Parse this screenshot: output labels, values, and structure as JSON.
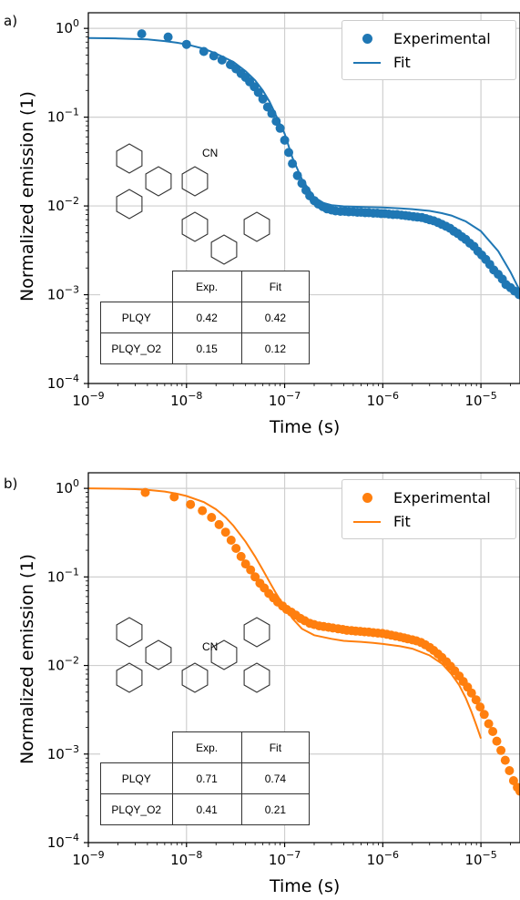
{
  "chart_data": [
    {
      "panel_label": "a)",
      "type": "scatter",
      "x_scale": "log",
      "y_scale": "log",
      "xlabel": "Time (s)",
      "ylabel": "Normalized emission (1)",
      "xlim": [
        1e-09,
        2.5e-05
      ],
      "ylim": [
        0.0001,
        1.5
      ],
      "x_ticks": [
        1e-09,
        1e-08,
        1e-07,
        1e-06,
        1e-05
      ],
      "x_tick_labels": [
        [
          "10",
          "−9"
        ],
        [
          "10",
          "−8"
        ],
        [
          "10",
          "−7"
        ],
        [
          "10",
          "−6"
        ],
        [
          "10",
          "−5"
        ]
      ],
      "y_ticks": [
        0.0001,
        0.001,
        0.01,
        0.1,
        1
      ],
      "y_tick_labels": [
        [
          "10",
          "−4"
        ],
        [
          "10",
          "−3"
        ],
        [
          "10",
          "−2"
        ],
        [
          "10",
          "−1"
        ],
        [
          "10",
          "0"
        ]
      ],
      "grid": true,
      "legend_position": "top-right",
      "series": [
        {
          "name": "Experimental",
          "style": "markers",
          "color": "#1f77b4",
          "x": [
            3.5e-09,
            6.5e-09,
            1e-08,
            1.5e-08,
            1.9e-08,
            2.3e-08,
            2.8e-08,
            3.2e-08,
            3.6e-08,
            4e-08,
            4.4e-08,
            4.9e-08,
            5.4e-08,
            6e-08,
            6.7e-08,
            7.4e-08,
            8.2e-08,
            9e-08,
            1e-07,
            1.1e-07,
            1.2e-07,
            1.35e-07,
            1.5e-07,
            1.65e-07,
            1.8e-07,
            2e-07,
            2.2e-07,
            2.45e-07,
            2.7e-07,
            3e-07,
            3.3e-07,
            3.7e-07,
            4.1e-07,
            4.5e-07,
            5e-07,
            5.5e-07,
            6e-07,
            6.6e-07,
            7.2e-07,
            8e-07,
            8.8e-07,
            9.6e-07,
            1.05e-06,
            1.15e-06,
            1.27e-06,
            1.4e-06,
            1.55e-06,
            1.7e-06,
            1.85e-06,
            2.05e-06,
            2.25e-06,
            2.5e-06,
            2.75e-06,
            3e-06,
            3.3e-06,
            3.65e-06,
            4e-06,
            4.4e-06,
            4.85e-06,
            5.3e-06,
            5.8e-06,
            6.4e-06,
            7e-06,
            7.7e-06,
            8.5e-06,
            9.3e-06,
            1.02e-05,
            1.12e-05,
            1.23e-05,
            1.35e-05,
            1.5e-05,
            1.65e-05,
            1.8e-05,
            2e-05,
            2.2e-05,
            2.45e-05
          ],
          "y": [
            0.87,
            0.8,
            0.66,
            0.55,
            0.49,
            0.44,
            0.39,
            0.35,
            0.31,
            0.28,
            0.25,
            0.22,
            0.19,
            0.16,
            0.13,
            0.11,
            0.09,
            0.075,
            0.055,
            0.04,
            0.03,
            0.022,
            0.018,
            0.015,
            0.013,
            0.0115,
            0.0105,
            0.0098,
            0.0093,
            0.009,
            0.0088,
            0.0087,
            0.0087,
            0.0086,
            0.0086,
            0.0085,
            0.0085,
            0.0084,
            0.0084,
            0.0083,
            0.0083,
            0.0082,
            0.0082,
            0.0081,
            0.008,
            0.008,
            0.0079,
            0.0078,
            0.0077,
            0.0076,
            0.0075,
            0.0074,
            0.0072,
            0.007,
            0.0068,
            0.0065,
            0.0062,
            0.0059,
            0.0056,
            0.0052,
            0.0049,
            0.0045,
            0.0042,
            0.0038,
            0.0035,
            0.0031,
            0.0028,
            0.0025,
            0.0022,
            0.0019,
            0.0017,
            0.0015,
            0.0013,
            0.0012,
            0.0011,
            0.001
          ]
        },
        {
          "name": "Fit",
          "style": "line",
          "color": "#1f77b4",
          "x": [
            1e-09,
            2e-09,
            4e-09,
            6e-09,
            8e-09,
            1e-08,
            1.5e-08,
            2e-08,
            3e-08,
            4e-08,
            5e-08,
            6e-08,
            7e-08,
            8e-08,
            1e-07,
            1.2e-07,
            1.5e-07,
            2e-07,
            2.5e-07,
            3e-07,
            4e-07,
            5e-07,
            7e-07,
            1e-06,
            1.5e-06,
            2e-06,
            3e-06,
            4e-06,
            5e-06,
            7e-06,
            1e-05,
            1.5e-05,
            2e-05,
            2.5e-05
          ],
          "y": [
            0.78,
            0.77,
            0.75,
            0.72,
            0.69,
            0.66,
            0.59,
            0.52,
            0.42,
            0.33,
            0.26,
            0.2,
            0.15,
            0.11,
            0.065,
            0.035,
            0.02,
            0.0125,
            0.0108,
            0.0102,
            0.0099,
            0.0098,
            0.0097,
            0.0096,
            0.0094,
            0.0092,
            0.0088,
            0.0083,
            0.0078,
            0.0067,
            0.0052,
            0.0031,
            0.0018,
            0.0011
          ]
        }
      ],
      "table": {
        "col_headers": [
          "Exp.",
          "Fit"
        ],
        "rows": [
          {
            "label": "PLQY",
            "exp": "0.42",
            "fit": "0.42"
          },
          {
            "label": "PLQY_O2",
            "exp": "0.15",
            "fit": "0.12"
          }
        ]
      },
      "structure_label": "CN"
    },
    {
      "panel_label": "b)",
      "type": "scatter",
      "x_scale": "log",
      "y_scale": "log",
      "xlabel": "Time (s)",
      "ylabel": "Normalized emission (1)",
      "xlim": [
        1e-09,
        2.5e-05
      ],
      "ylim": [
        0.0001,
        1.5
      ],
      "x_ticks": [
        1e-09,
        1e-08,
        1e-07,
        1e-06,
        1e-05
      ],
      "x_tick_labels": [
        [
          "10",
          "−9"
        ],
        [
          "10",
          "−8"
        ],
        [
          "10",
          "−7"
        ],
        [
          "10",
          "−6"
        ],
        [
          "10",
          "−5"
        ]
      ],
      "y_ticks": [
        0.0001,
        0.001,
        0.01,
        0.1,
        1
      ],
      "y_tick_labels": [
        [
          "10",
          "−4"
        ],
        [
          "10",
          "−3"
        ],
        [
          "10",
          "−2"
        ],
        [
          "10",
          "−1"
        ],
        [
          "10",
          "0"
        ]
      ],
      "grid": true,
      "legend_position": "top-right",
      "series": [
        {
          "name": "Experimental",
          "style": "markers",
          "color": "#ff7f0e",
          "x": [
            3.8e-09,
            7.5e-09,
            1.1e-08,
            1.45e-08,
            1.8e-08,
            2.15e-08,
            2.5e-08,
            2.85e-08,
            3.2e-08,
            3.6e-08,
            4e-08,
            4.5e-08,
            5e-08,
            5.6e-08,
            6.2e-08,
            6.9e-08,
            7.7e-08,
            8.5e-08,
            9.5e-08,
            1.05e-07,
            1.17e-07,
            1.3e-07,
            1.45e-07,
            1.6e-07,
            1.8e-07,
            2e-07,
            2.25e-07,
            2.5e-07,
            2.8e-07,
            3.1e-07,
            3.5e-07,
            3.9e-07,
            4.3e-07,
            4.8e-07,
            5.3e-07,
            5.9e-07,
            6.5e-07,
            7.2e-07,
            8e-07,
            8.9e-07,
            9.9e-07,
            1.1e-06,
            1.22e-06,
            1.35e-06,
            1.5e-06,
            1.65e-06,
            1.8e-06,
            2e-06,
            2.2e-06,
            2.45e-06,
            2.7e-06,
            3e-06,
            3.3e-06,
            3.65e-06,
            4e-06,
            4.45e-06,
            4.9e-06,
            5.4e-06,
            6e-06,
            6.6e-06,
            7.3e-06,
            8e-06,
            8.9e-06,
            9.8e-06,
            1.08e-05,
            1.2e-05,
            1.32e-05,
            1.45e-05,
            1.6e-05,
            1.77e-05,
            1.95e-05,
            2.15e-05,
            2.35e-05,
            2.5e-05
          ],
          "y": [
            0.9,
            0.8,
            0.66,
            0.56,
            0.47,
            0.39,
            0.32,
            0.26,
            0.21,
            0.17,
            0.14,
            0.12,
            0.1,
            0.085,
            0.075,
            0.065,
            0.058,
            0.052,
            0.047,
            0.043,
            0.04,
            0.037,
            0.034,
            0.032,
            0.03,
            0.029,
            0.028,
            0.0275,
            0.027,
            0.0265,
            0.026,
            0.0255,
            0.025,
            0.0248,
            0.0245,
            0.0243,
            0.024,
            0.0238,
            0.0235,
            0.0232,
            0.023,
            0.0225,
            0.022,
            0.0215,
            0.021,
            0.0205,
            0.02,
            0.0195,
            0.019,
            0.0182,
            0.0172,
            0.016,
            0.0148,
            0.0135,
            0.0123,
            0.011,
            0.0098,
            0.0087,
            0.0076,
            0.0066,
            0.0057,
            0.0049,
            0.0041,
            0.0034,
            0.0028,
            0.0022,
            0.0018,
            0.0014,
            0.0011,
            0.00085,
            0.00065,
            0.0005,
            0.00042,
            0.00038
          ]
        },
        {
          "name": "Fit",
          "style": "line",
          "color": "#ff7f0e",
          "x": [
            1e-09,
            2e-09,
            3e-09,
            4e-09,
            6e-09,
            8e-09,
            1e-08,
            1.5e-08,
            2e-08,
            2.5e-08,
            3e-08,
            4e-08,
            5e-08,
            6e-08,
            7e-08,
            8e-08,
            9e-08,
            1e-07,
            1.2e-07,
            1.5e-07,
            2e-07,
            3e-07,
            4e-07,
            6e-07,
            8e-07,
            1e-06,
            1.5e-06,
            2e-06,
            3e-06,
            4e-06,
            5e-06,
            6e-06,
            7e-06,
            8e-06,
            9e-06,
            1e-05
          ],
          "y": [
            1.0,
            0.99,
            0.98,
            0.96,
            0.92,
            0.87,
            0.82,
            0.7,
            0.58,
            0.47,
            0.38,
            0.25,
            0.17,
            0.12,
            0.088,
            0.068,
            0.055,
            0.046,
            0.034,
            0.026,
            0.022,
            0.02,
            0.019,
            0.0185,
            0.018,
            0.0175,
            0.0165,
            0.0155,
            0.013,
            0.0105,
            0.008,
            0.006,
            0.0043,
            0.003,
            0.0021,
            0.0015
          ]
        }
      ],
      "table": {
        "col_headers": [
          "Exp.",
          "Fit"
        ],
        "rows": [
          {
            "label": "PLQY",
            "exp": "0.71",
            "fit": "0.74"
          },
          {
            "label": "PLQY_O2",
            "exp": "0.41",
            "fit": "0.21"
          }
        ]
      },
      "structure_label": "CN"
    }
  ]
}
